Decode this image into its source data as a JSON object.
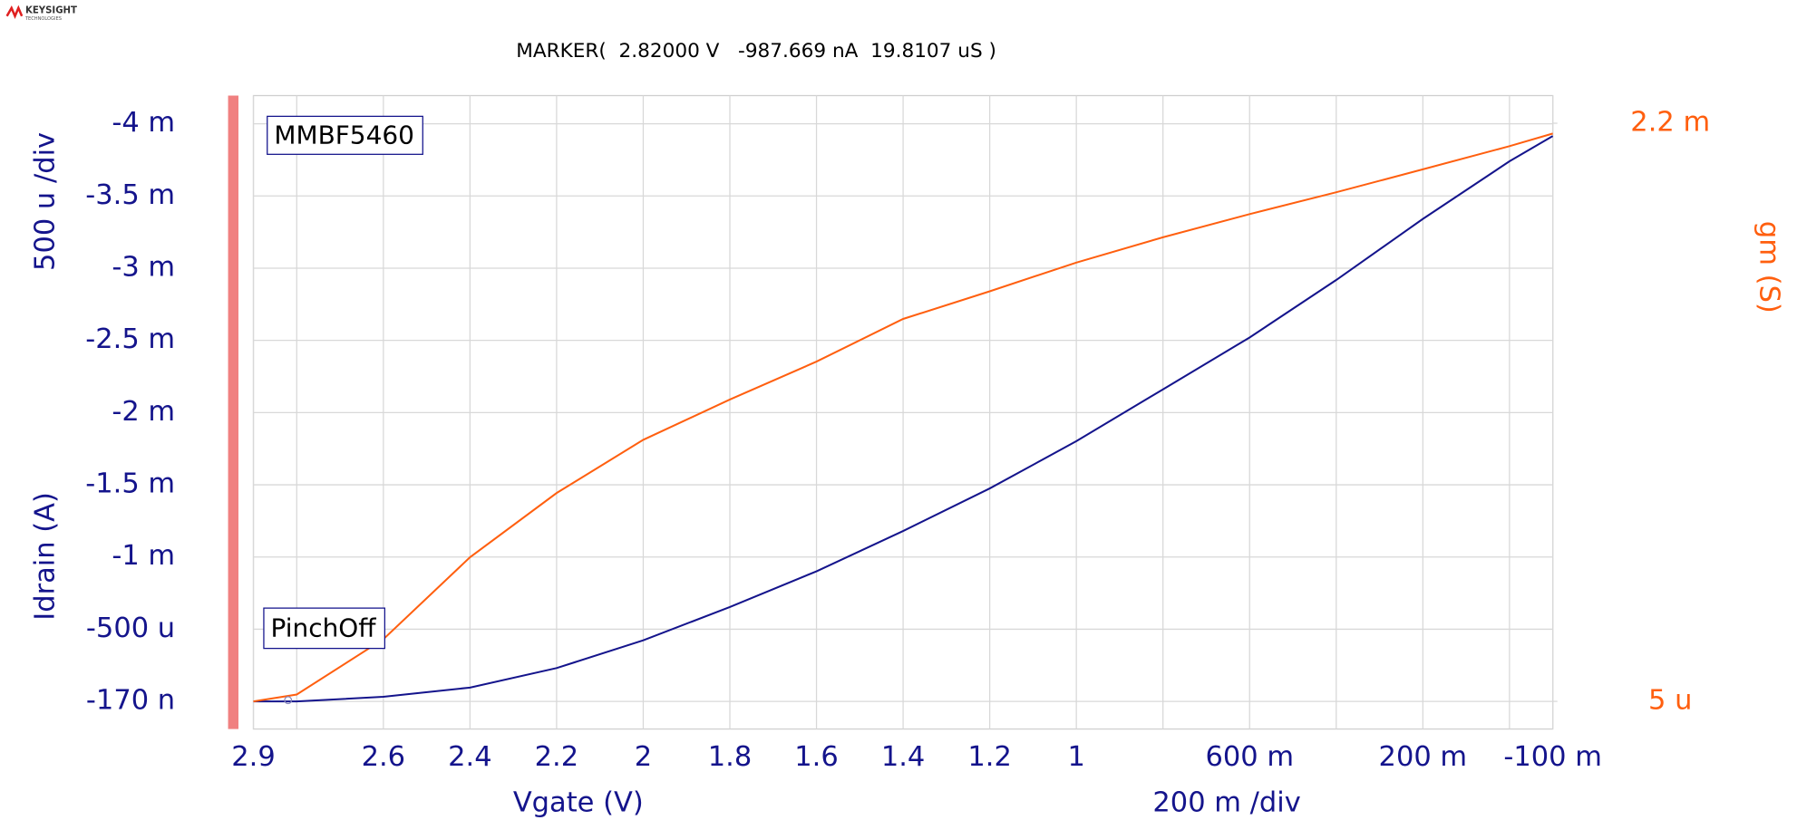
{
  "chart_data": {
    "type": "line",
    "logo": "KEYSIGHT",
    "logo_subtitle": "TECHNOLOGIES",
    "marker_text": "MARKER(  2.82000 V   -987.669 nA  19.8107 uS )",
    "marker_point": {
      "x": 2.82,
      "y": -9.87669e-07
    },
    "annotations": [
      "MMBF5460",
      "PinchOff"
    ],
    "xlabel": "Vgate (V)",
    "xscale_label": "200 m /div",
    "ylabel": "Idrain (A)",
    "yscale_label": "500 u /div",
    "y2label": "gm (S)",
    "grid": true,
    "x": [
      2.9,
      2.8,
      2.6,
      2.4,
      2.2,
      2,
      1.8,
      1.6,
      1.4,
      1.2,
      1,
      0.8,
      0.6,
      0.4,
      0.2,
      0,
      -0.1
    ],
    "series": [
      {
        "name": "Idrain",
        "color": "#14148c",
        "values": [
          -1.7e-07,
          -1.7e-07,
          -3.2e-05,
          -9.6e-05,
          -0.000231,
          -0.000423,
          -0.000654,
          -0.000901,
          -0.00118,
          -0.001475,
          -0.001802,
          -0.002161,
          -0.00252,
          -0.002918,
          -0.003341,
          -0.00374,
          -0.003915
        ]
      },
      {
        "name": "gm",
        "color": "#ff5f0f",
        "axis": "y2",
        "values": [
          5e-06,
          3.1e-05,
          0.000241,
          0.000552,
          0.000796,
          0.000998,
          0.001151,
          0.001295,
          0.001457,
          0.001562,
          0.001671,
          0.001767,
          0.001855,
          0.001938,
          0.002025,
          0.002113,
          0.002161
        ]
      }
    ],
    "xlim": [
      2.9,
      -0.1
    ],
    "xticks": [
      2.9,
      2.6,
      2.4,
      2.2,
      2,
      1.8,
      1.6,
      1.4,
      1.2,
      1,
      {
        "value": 0.6,
        "label": "600 m"
      },
      {
        "value": 0.2,
        "label": "200 m"
      },
      {
        "value": -0.1,
        "label": "-100 m"
      }
    ],
    "xminorticks": [
      2.8,
      0.8,
      0.4,
      0
    ],
    "ylim": [
      0.000191,
      -0.004195
    ],
    "yticks": [
      {
        "value": -1.7e-07,
        "label": "-170 n"
      },
      {
        "value": -0.0005,
        "label": "-500 u"
      },
      {
        "value": -0.001,
        "label": "-1 m"
      },
      {
        "value": -0.0015,
        "label": "-1.5 m"
      },
      {
        "value": -0.002,
        "label": "-2 m"
      },
      {
        "value": -0.0025,
        "label": "-2.5 m"
      },
      {
        "value": -0.003,
        "label": "-3 m"
      },
      {
        "value": -0.0035,
        "label": "-3.5 m"
      },
      {
        "value": -0.004,
        "label": "-4 m"
      }
    ],
    "y2lim": [
      -0.0001,
      0.002305
    ],
    "y2ticks": [
      {
        "value": 5e-06,
        "label": "5 u"
      },
      {
        "value": 0.0022,
        "label": "2.2 m"
      }
    ]
  }
}
